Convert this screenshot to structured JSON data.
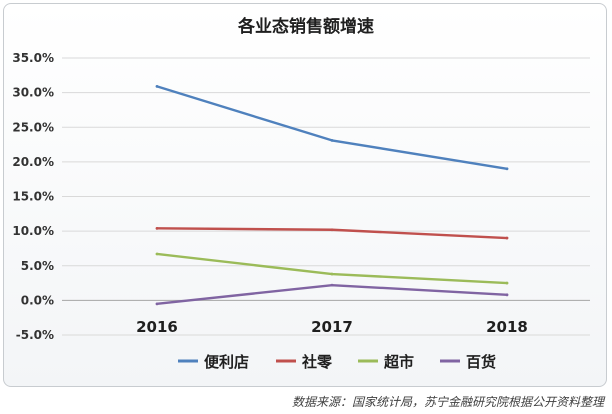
{
  "chart_data": {
    "type": "line",
    "title": "各业态销售额增速",
    "x": [
      "2016",
      "2017",
      "2018"
    ],
    "xlabel": "",
    "ylabel": "",
    "ylim": [
      -5,
      35
    ],
    "ytick_labels": [
      "35.0%",
      "30.0%",
      "25.0%",
      "20.0%",
      "15.0%",
      "10.0%",
      "5.0%",
      "0.0%",
      "-5.0%"
    ],
    "grid": true,
    "legend": "bottom",
    "series": [
      {
        "name": "便利店",
        "color": "#4f81bd",
        "values": [
          30.9,
          23.1,
          19.0
        ]
      },
      {
        "name": "社零",
        "color": "#c0504d",
        "values": [
          10.4,
          10.2,
          9.0
        ]
      },
      {
        "name": "超市",
        "color": "#9bbb59",
        "values": [
          6.7,
          3.8,
          2.5
        ]
      },
      {
        "name": "百货",
        "color": "#8064a2",
        "values": [
          -0.5,
          2.2,
          0.8
        ]
      }
    ]
  },
  "source_note": "数据来源：国家统计局，苏宁金融研究院根据公开资料整理"
}
